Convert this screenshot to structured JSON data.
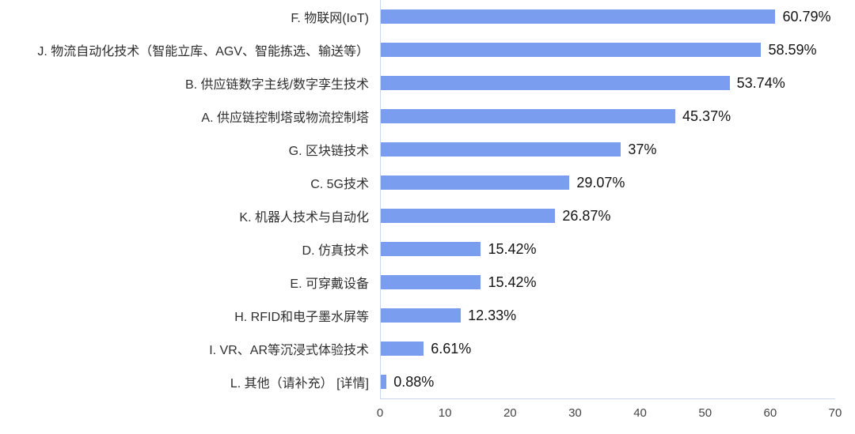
{
  "chart_data": {
    "type": "bar",
    "orientation": "horizontal",
    "title": "",
    "xlabel": "",
    "ylabel": "",
    "xlim": [
      0,
      70
    ],
    "x_ticks": [
      0,
      10,
      20,
      30,
      40,
      50,
      60,
      70
    ],
    "grid": false,
    "legend": null,
    "bar_color": "#7b9df0",
    "axis_line_color": "#c9d7f3",
    "value_label_color": "#141414",
    "category_label_color": "#2e2e2e",
    "categories": [
      "F. 物联网(IoT)",
      "J. 物流自动化技术（智能立库、AGV、智能拣选、输送等）",
      "B. 供应链数字主线/数字孪生技术",
      "A. 供应链控制塔或物流控制塔",
      "G. 区块链技术",
      "C. 5G技术",
      "K. 机器人技术与自动化",
      "D. 仿真技术",
      "E. 可穿戴设备",
      "H. RFID和电子墨水屏等",
      "I. VR、AR等沉浸式体验技术",
      "L. 其他（请补充） [详情]"
    ],
    "values": [
      60.79,
      58.59,
      53.74,
      45.37,
      37,
      29.07,
      26.87,
      15.42,
      15.42,
      12.33,
      6.61,
      0.88
    ],
    "value_labels": [
      "60.79%",
      "58.59%",
      "53.74%",
      "45.37%",
      "37%",
      "29.07%",
      "26.87%",
      "15.42%",
      "15.42%",
      "12.33%",
      "6.61%",
      "0.88%"
    ]
  }
}
